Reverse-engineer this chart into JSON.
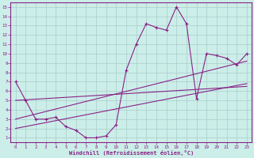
{
  "xlabel": "Windchill (Refroidissement éolien,°C)",
  "background_color": "#cceee8",
  "grid_color": "#aacccc",
  "line_color": "#882288",
  "xlim": [
    -0.5,
    23.5
  ],
  "ylim": [
    0.5,
    15.5
  ],
  "xticks": [
    0,
    1,
    2,
    3,
    4,
    5,
    6,
    7,
    8,
    9,
    10,
    11,
    12,
    13,
    14,
    15,
    16,
    17,
    18,
    19,
    20,
    21,
    22,
    23
  ],
  "yticks": [
    1,
    2,
    3,
    4,
    5,
    6,
    7,
    8,
    9,
    10,
    11,
    12,
    13,
    14,
    15
  ],
  "series1_x": [
    0,
    1,
    2,
    3,
    4,
    5,
    6,
    7,
    8,
    9,
    10,
    11,
    12,
    13,
    14,
    15,
    16,
    17,
    18,
    19,
    20,
    21,
    22,
    23
  ],
  "series1_y": [
    7.0,
    5.0,
    3.0,
    3.0,
    3.2,
    2.2,
    1.8,
    1.0,
    1.0,
    1.2,
    2.4,
    8.2,
    11.0,
    13.2,
    12.8,
    12.5,
    15.0,
    13.2,
    5.2,
    10.0,
    9.8,
    9.5,
    8.8,
    10.0
  ],
  "series2_x": [
    0,
    23
  ],
  "series2_y": [
    5.0,
    6.5
  ],
  "series3_x": [
    0,
    23
  ],
  "series3_y": [
    3.0,
    9.2
  ],
  "series4_x": [
    0,
    23
  ],
  "series4_y": [
    2.0,
    6.8
  ]
}
